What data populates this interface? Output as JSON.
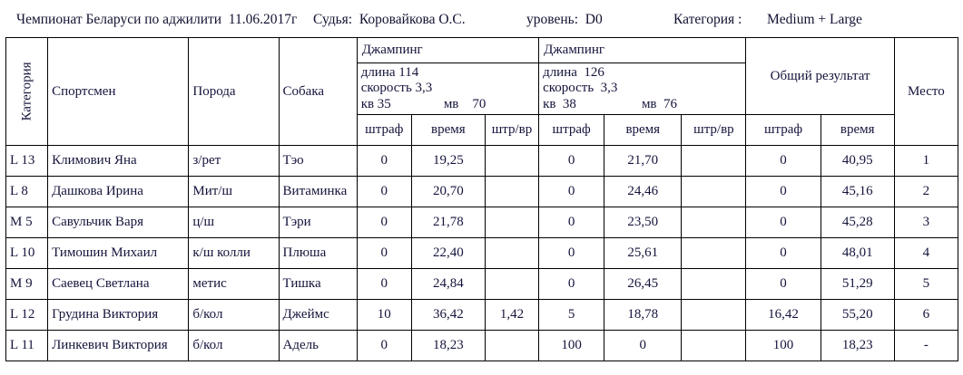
{
  "header": {
    "title": "Чемпионат Беларуси по аджилити  11.06.2017г",
    "judge": "Судья:  Коровайкова О.С.",
    "level": "уровень:  D0",
    "category_label": "Категория :",
    "category_value": "Medium + Large"
  },
  "table": {
    "columns": {
      "category": "Категория",
      "athlete": "Спортсмен",
      "breed": "Порода",
      "dog": "Собака",
      "total": "Общий результат",
      "place": "Место",
      "penalty": "штраф",
      "time": "время",
      "penalty_time": "штр/вр"
    },
    "jumping1": {
      "name": "Джампинг",
      "length": "длина 114",
      "speed": "скорость 3,3",
      "kv": "кв 35",
      "mv": "мв    70"
    },
    "jumping2": {
      "name": "Джампинг",
      "length": "длина  126",
      "speed": "скорость  3,3",
      "kv": "кв  38",
      "mv": "мв  76"
    },
    "rows": [
      {
        "cat": "L 13",
        "athlete": "Климович Яна",
        "breed": "з/рет",
        "dog": "Тэо",
        "j1_penalty": "0",
        "j1_time": "19,25",
        "j1_pt": "",
        "j2_penalty": "0",
        "j2_time": "21,70",
        "j2_pt": "",
        "t_penalty": "0",
        "t_time": "40,95",
        "place": "1"
      },
      {
        "cat": "L 8",
        "athlete": "Дашкова Ирина",
        "breed": "Мит/ш",
        "dog": "Витаминка",
        "j1_penalty": "0",
        "j1_time": "20,70",
        "j1_pt": "",
        "j2_penalty": "0",
        "j2_time": "24,46",
        "j2_pt": "",
        "t_penalty": "0",
        "t_time": "45,16",
        "place": "2"
      },
      {
        "cat": "M 5",
        "athlete": "Савульчик Варя",
        "breed": "ц/ш",
        "dog": "Тэри",
        "j1_penalty": "0",
        "j1_time": "21,78",
        "j1_pt": "",
        "j2_penalty": "0",
        "j2_time": "23,50",
        "j2_pt": "",
        "t_penalty": "0",
        "t_time": "45,28",
        "place": "3"
      },
      {
        "cat": "L 10",
        "athlete": "Тимошин Михаил",
        "breed": "к/ш колли",
        "dog": "Плюша",
        "j1_penalty": "0",
        "j1_time": "22,40",
        "j1_pt": "",
        "j2_penalty": "0",
        "j2_time": "25,61",
        "j2_pt": "",
        "t_penalty": "0",
        "t_time": "48,01",
        "place": "4"
      },
      {
        "cat": "M 9",
        "athlete": "Саевец Светлана",
        "breed": "метис",
        "dog": "Тишка",
        "j1_penalty": "0",
        "j1_time": "24,84",
        "j1_pt": "",
        "j2_penalty": "0",
        "j2_time": "26,45",
        "j2_pt": "",
        "t_penalty": "0",
        "t_time": "51,29",
        "place": "5"
      },
      {
        "cat": "L 12",
        "athlete": "Грудина Виктория",
        "breed": "б/кол",
        "dog": "Джеймс",
        "j1_penalty": "10",
        "j1_time": "36,42",
        "j1_pt": "1,42",
        "j2_penalty": "5",
        "j2_time": "18,78",
        "j2_pt": "",
        "t_penalty": "16,42",
        "t_time": "55,20",
        "place": "6"
      },
      {
        "cat": "L 11",
        "athlete": "Линкевич Виктория",
        "breed": "б/кол",
        "dog": "Адель",
        "j1_penalty": "0",
        "j1_time": "18,23",
        "j1_pt": "",
        "j2_penalty": "100",
        "j2_time": "0",
        "j2_pt": "",
        "t_penalty": "100",
        "t_time": "18,23",
        "place": "-"
      }
    ]
  }
}
